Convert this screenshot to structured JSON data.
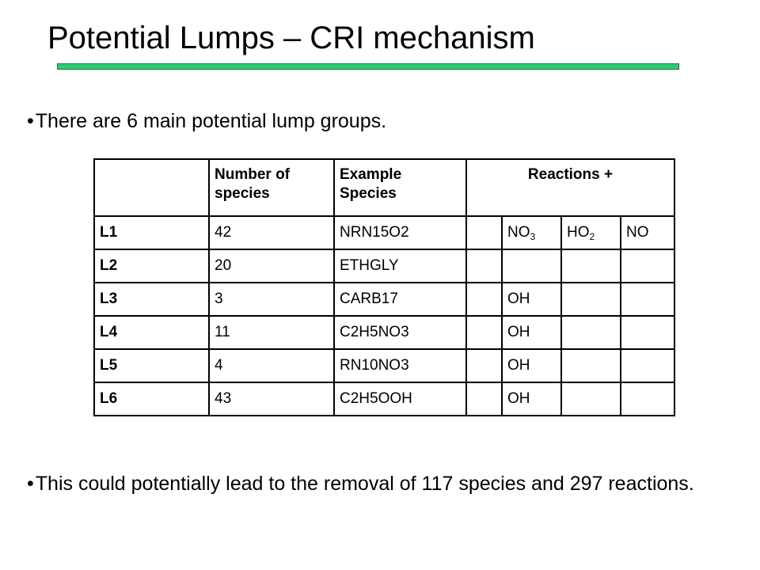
{
  "slide": {
    "title": "Potential Lumps – CRI mechanism",
    "bullet_char": "•",
    "bullets": [
      "There are 6 main potential lump groups.",
      "This could potentially lead to the removal of 117 species and 297 reactions."
    ]
  },
  "table": {
    "headers": [
      "",
      "Number of species",
      "Example Species",
      "Reactions +"
    ],
    "rows": [
      {
        "label": "L1",
        "count": "42",
        "example": "NRN15O2",
        "r1": "",
        "r2": "NO3",
        "r3": "HO2",
        "r4": "NO"
      },
      {
        "label": "L2",
        "count": "20",
        "example": "ETHGLY",
        "r1": "",
        "r2": "",
        "r3": "",
        "r4": ""
      },
      {
        "label": "L3",
        "count": "3",
        "example": "CARB17",
        "r1": "",
        "r2": "OH",
        "r3": "",
        "r4": ""
      },
      {
        "label": "L4",
        "count": "11",
        "example": "C2H5NO3",
        "r1": "",
        "r2": "OH",
        "r3": "",
        "r4": ""
      },
      {
        "label": "L5",
        "count": "4",
        "example": "RN10NO3",
        "r1": "",
        "r2": "OH",
        "r3": "",
        "r4": ""
      },
      {
        "label": "L6",
        "count": "43",
        "example": "C2H5OOH",
        "r1": "",
        "r2": "OH",
        "r3": "",
        "r4": ""
      }
    ]
  },
  "colors": {
    "title_rule": "#2ecc71"
  }
}
